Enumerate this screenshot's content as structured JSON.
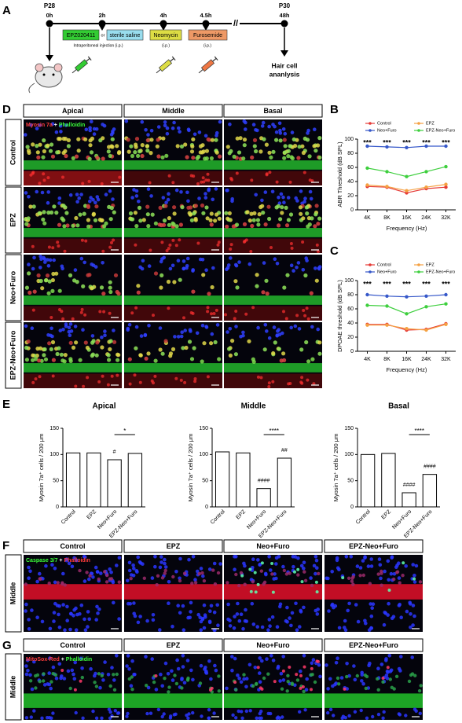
{
  "panels": [
    "A",
    "B",
    "C",
    "D",
    "E",
    "F",
    "G"
  ],
  "timeline": {
    "start": {
      "day": "P28",
      "time": "0h"
    },
    "times": [
      "2h",
      "4h",
      "4.5h"
    ],
    "end": {
      "day": "P30",
      "time": "48h"
    },
    "break": "//",
    "treatments": [
      {
        "name": "EPZ020411",
        "color": "#33cc33"
      },
      {
        "name": "sterile saline",
        "color": "#99ddee"
      },
      {
        "name": "Neomycin",
        "color": "#dddd44"
      },
      {
        "name": "Furosemide",
        "color": "#ee9966"
      }
    ],
    "or": "or",
    "route_note": "Intraperitoneal injection (i.p.)",
    "route": "(i.p.)",
    "outcome": [
      "Hair cell",
      "ananlysis"
    ]
  },
  "panel_d": {
    "columns": [
      "Apical",
      "Middle",
      "Basal"
    ],
    "rows": [
      "Control",
      "EPZ",
      "Neo+Furo",
      "EPZ-Neo+Furo"
    ],
    "stain": [
      {
        "text": "Myosin 7a",
        "color": "#ff3b3b"
      },
      {
        "text": " + ",
        "color": "#ffffff"
      },
      {
        "text": "Phalloidin",
        "color": "#3bff3b"
      }
    ]
  },
  "panel_f": {
    "region": "Middle",
    "columns": [
      "Control",
      "EPZ",
      "Neo+Furo",
      "EPZ-Neo+Furo"
    ],
    "stain": [
      {
        "text": "Caspase 3/7",
        "color": "#3bff3b"
      },
      {
        "text": " + ",
        "color": "#ffffff"
      },
      {
        "text": "Phalloidin",
        "color": "#ff3b3b"
      }
    ]
  },
  "panel_g": {
    "region": "Middle",
    "columns": [
      "Control",
      "EPZ",
      "Neo+Furo",
      "EPZ-Neo+Furo"
    ],
    "stain": [
      {
        "text": "MitoSox-Red",
        "color": "#ff3b3b"
      },
      {
        "text": " + ",
        "color": "#ffffff"
      },
      {
        "text": "Phalloidin",
        "color": "#3bff3b"
      }
    ]
  },
  "chart_data": [
    {
      "type": "line",
      "ylabel": "ABR Threshold (dB SPL)",
      "xlabel": "Frequency (Hz)",
      "categories": [
        "4K",
        "8K",
        "16K",
        "24K",
        "32K"
      ],
      "ylim": [
        0,
        100
      ],
      "yticks": [
        0,
        20,
        40,
        60,
        80,
        100
      ],
      "series": [
        {
          "name": "Control",
          "color": "#e53935",
          "values": [
            33,
            32,
            24,
            30,
            32
          ]
        },
        {
          "name": "EPZ",
          "color": "#f5a142",
          "values": [
            35,
            33,
            27,
            32,
            36
          ]
        },
        {
          "name": "Neo+Furo",
          "color": "#3557c9",
          "values": [
            90,
            89,
            88,
            90,
            90
          ]
        },
        {
          "name": "EPZ-Neo+Furo",
          "color": "#3ecf3e",
          "values": [
            59,
            54,
            47,
            54,
            61
          ]
        }
      ],
      "annotations": [
        "***",
        "***",
        "***",
        "***",
        "***"
      ]
    },
    {
      "type": "line",
      "ylabel": "DPOAE threshold (dB SPL)",
      "xlabel": "Frequency (Hz)",
      "categories": [
        "4K",
        "8K",
        "16K",
        "24K",
        "32K"
      ],
      "ylim": [
        0,
        100
      ],
      "yticks": [
        0,
        20,
        40,
        60,
        80,
        100
      ],
      "series": [
        {
          "name": "Control",
          "color": "#e53935",
          "values": [
            38,
            38,
            30,
            31,
            39
          ]
        },
        {
          "name": "EPZ",
          "color": "#f5a142",
          "values": [
            37,
            37,
            32,
            30,
            38
          ]
        },
        {
          "name": "Neo+Furo",
          "color": "#3557c9",
          "values": [
            80,
            78,
            77,
            78,
            80
          ]
        },
        {
          "name": "EPZ-Neo+Furo",
          "color": "#3ecf3e",
          "values": [
            65,
            64,
            53,
            63,
            67
          ]
        }
      ],
      "annotations": [
        "***",
        "***",
        "***",
        "***",
        "***"
      ]
    },
    {
      "type": "bar",
      "title": "Apical",
      "ylabel": "Myosin 7a⁺ cells / 200 μm",
      "categories": [
        "Control",
        "EPZ",
        "Neo+Furo",
        "EPZ-Neo+Furo"
      ],
      "values": [
        103,
        103,
        90,
        102
      ],
      "ylim": [
        0,
        150
      ],
      "yticks": [
        0,
        50,
        100,
        150
      ],
      "annotations": [
        {
          "text": "#",
          "category": 2
        }
      ],
      "comparisons": [
        {
          "text": "*",
          "from": 2,
          "to": 3
        }
      ]
    },
    {
      "type": "bar",
      "title": "Middle",
      "ylabel": "Myosin 7a⁺ cells / 200 μm",
      "categories": [
        "Control",
        "EPZ",
        "Neo+Furo",
        "EPZ-Neo+Furo"
      ],
      "values": [
        105,
        103,
        35,
        93
      ],
      "ylim": [
        0,
        150
      ],
      "yticks": [
        0,
        50,
        100,
        150
      ],
      "annotations": [
        {
          "text": "####",
          "category": 2
        },
        {
          "text": "##",
          "category": 3
        }
      ],
      "comparisons": [
        {
          "text": "****",
          "from": 2,
          "to": 3
        }
      ]
    },
    {
      "type": "bar",
      "title": "Basal",
      "ylabel": "Myosin 7a⁺ cells / 200 μm",
      "categories": [
        "Control",
        "EPZ",
        "Neo+Furo",
        "EPZ-Neo+Furo"
      ],
      "values": [
        100,
        102,
        27,
        62
      ],
      "ylim": [
        0,
        150
      ],
      "yticks": [
        0,
        50,
        100,
        150
      ],
      "annotations": [
        {
          "text": "####",
          "category": 2
        },
        {
          "text": "####",
          "category": 3
        }
      ],
      "comparisons": [
        {
          "text": "****",
          "from": 2,
          "to": 3
        }
      ]
    }
  ]
}
